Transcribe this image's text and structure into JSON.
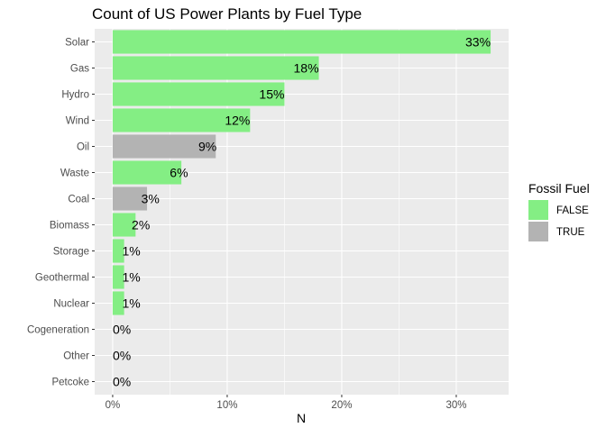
{
  "chart_data": {
    "type": "bar",
    "orientation": "horizontal",
    "title": "Count of US Power Plants by Fuel Type",
    "xlabel": "N",
    "ylabel": "",
    "xlim": [
      -0.0157,
      0.3457
    ],
    "x_ticks": [
      0,
      0.1,
      0.2,
      0.3
    ],
    "x_tick_labels": [
      "0%",
      "10%",
      "20%",
      "30%"
    ],
    "grid": true,
    "categories": [
      "Solar",
      "Gas",
      "Hydro",
      "Wind",
      "Oil",
      "Waste",
      "Coal",
      "Biomass",
      "Storage",
      "Geothermal",
      "Nuclear",
      "Cogeneration",
      "Other",
      "Petcoke"
    ],
    "values": [
      0.33,
      0.18,
      0.15,
      0.12,
      0.09,
      0.06,
      0.03,
      0.02,
      0.01,
      0.01,
      0.01,
      0.0,
      0.0,
      0.0
    ],
    "labels": [
      "33%",
      "18%",
      "15%",
      "12%",
      "9%",
      "6%",
      "3%",
      "2%",
      "1%",
      "1%",
      "1%",
      "0%",
      "0%",
      "0%"
    ],
    "fossil": [
      false,
      false,
      false,
      false,
      true,
      false,
      true,
      false,
      false,
      false,
      false,
      false,
      false,
      false
    ],
    "legend": {
      "title": "Fossil Fuel",
      "position": "right",
      "entries": [
        {
          "label": "FALSE",
          "color": "#84ee84"
        },
        {
          "label": "TRUE",
          "color": "#b3b3b3"
        }
      ]
    },
    "colors": {
      "panel": "#ebebeb",
      "grid": "#ffffff",
      "false": "#84ee84",
      "true": "#b3b3b3"
    }
  }
}
